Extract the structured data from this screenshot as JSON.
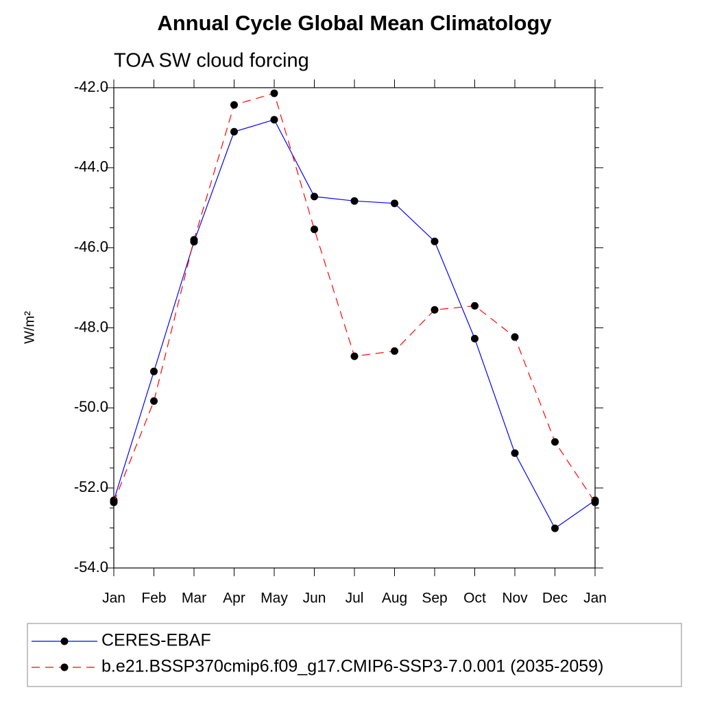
{
  "chart_data": {
    "type": "line",
    "title": "Annual Cycle Global Mean Climatology",
    "subtitle": "TOA SW cloud forcing",
    "y_label": "W/m²",
    "categories": [
      "Jan",
      "Feb",
      "Mar",
      "Apr",
      "May",
      "Jun",
      "Jul",
      "Aug",
      "Sep",
      "Oct",
      "Nov",
      "Dec",
      "Jan"
    ],
    "series": [
      {
        "name": "CERES-EBAF",
        "color": "#0000ff",
        "linestyle": "solid",
        "values": [
          -52.31,
          -49.09,
          -45.85,
          -43.1,
          -42.8,
          -44.72,
          -44.83,
          -44.89,
          -45.84,
          -48.27,
          -51.13,
          -53.01,
          -52.31
        ]
      },
      {
        "name": "b.e21.BSSP370cmip6.f09_g17.CMIP6-SSP3-7.0.001 (2035-2059)",
        "color": "#ff0000",
        "linestyle": "dashed",
        "values": [
          -52.36,
          -49.83,
          -45.8,
          -42.43,
          -42.14,
          -45.54,
          -48.71,
          -48.58,
          -47.55,
          -47.45,
          -48.23,
          -50.85,
          -52.36
        ]
      }
    ],
    "ylim": [
      -54,
      -42
    ],
    "yticks": [
      {
        "value": -54,
        "label": "-54.0"
      },
      {
        "value": -52,
        "label": "-52.0"
      },
      {
        "value": -50,
        "label": "-50.0"
      },
      {
        "value": -48,
        "label": "-48.0"
      },
      {
        "value": -46,
        "label": "-46.0"
      },
      {
        "value": -44,
        "label": "-44.0"
      },
      {
        "value": -42,
        "label": "-42.0"
      }
    ],
    "yminorticks": [
      -53.5,
      -53,
      -52.5,
      -51.5,
      -51,
      -50.5,
      -49.5,
      -49,
      -48.5,
      -47.5,
      -47,
      -46.5,
      -45.5,
      -45,
      -44.5,
      -43.5,
      -43,
      -42.5
    ],
    "grid": false
  }
}
